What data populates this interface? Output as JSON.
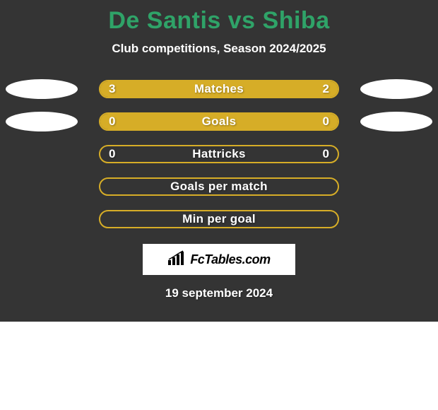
{
  "title": "De Santis vs Shiba",
  "subtitle": "Club competitions, Season 2024/2025",
  "date": "19 september 2024",
  "logo_text": "FcTables.com",
  "colors": {
    "panel_bg": "#343434",
    "title": "#2fa368",
    "subtitle": "#ffffff",
    "row_text": "#ffffff",
    "bar_border": "#d6ad27",
    "ellipse": "#ffffff",
    "date": "#ffffff"
  },
  "left_player": "De Santis",
  "right_player": "Shiba",
  "rows": [
    {
      "label": "Matches",
      "left_value": "3",
      "right_value": "2",
      "left_fill_pct": 60,
      "right_fill_pct": 40,
      "show_ellipses": true
    },
    {
      "label": "Goals",
      "left_value": "0",
      "right_value": "0",
      "left_fill_pct": 50,
      "right_fill_pct": 50,
      "show_ellipses": true
    },
    {
      "label": "Hattricks",
      "left_value": "0",
      "right_value": "0",
      "left_fill_pct": 0,
      "right_fill_pct": 0,
      "show_ellipses": false
    },
    {
      "label": "Goals per match",
      "left_value": "",
      "right_value": "",
      "left_fill_pct": 0,
      "right_fill_pct": 0,
      "show_ellipses": false
    },
    {
      "label": "Min per goal",
      "left_value": "",
      "right_value": "",
      "left_fill_pct": 0,
      "right_fill_pct": 0,
      "show_ellipses": false
    }
  ]
}
